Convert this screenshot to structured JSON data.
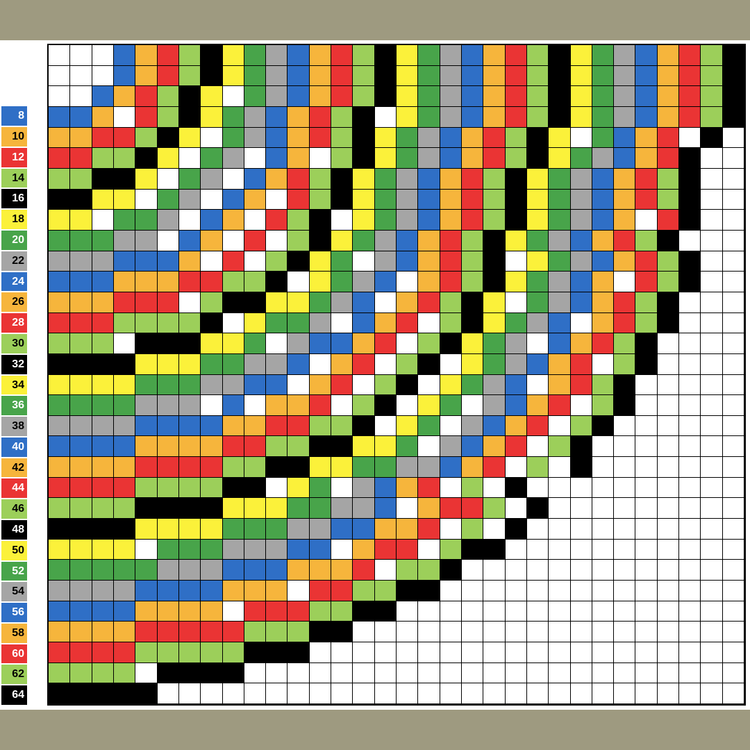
{
  "row_labels": [
    {
      "text": "8",
      "color": "#2f6fc6",
      "text_color": "#ffffff"
    },
    {
      "text": "10",
      "color": "#f6b53c",
      "text_color": "#000000"
    },
    {
      "text": "12",
      "color": "#ea3434",
      "text_color": "#ffffff"
    },
    {
      "text": "14",
      "color": "#9ccf5a",
      "text_color": "#000000"
    },
    {
      "text": "16",
      "color": "#000000",
      "text_color": "#ffffff"
    },
    {
      "text": "18",
      "color": "#fbf13a",
      "text_color": "#000000"
    },
    {
      "text": "20",
      "color": "#48a44a",
      "text_color": "#ffffff"
    },
    {
      "text": "22",
      "color": "#a5a5a5",
      "text_color": "#000000"
    },
    {
      "text": "24",
      "color": "#2f6fc6",
      "text_color": "#ffffff"
    },
    {
      "text": "26",
      "color": "#f6b53c",
      "text_color": "#000000"
    },
    {
      "text": "28",
      "color": "#ea3434",
      "text_color": "#ffffff"
    },
    {
      "text": "30",
      "color": "#9ccf5a",
      "text_color": "#000000"
    },
    {
      "text": "32",
      "color": "#000000",
      "text_color": "#ffffff"
    },
    {
      "text": "34",
      "color": "#fbf13a",
      "text_color": "#000000"
    },
    {
      "text": "36",
      "color": "#48a44a",
      "text_color": "#ffffff"
    },
    {
      "text": "38",
      "color": "#a5a5a5",
      "text_color": "#000000"
    },
    {
      "text": "40",
      "color": "#2f6fc6",
      "text_color": "#ffffff"
    },
    {
      "text": "42",
      "color": "#f6b53c",
      "text_color": "#000000"
    },
    {
      "text": "44",
      "color": "#ea3434",
      "text_color": "#ffffff"
    },
    {
      "text": "46",
      "color": "#9ccf5a",
      "text_color": "#000000"
    },
    {
      "text": "48",
      "color": "#000000",
      "text_color": "#ffffff"
    },
    {
      "text": "50",
      "color": "#fbf13a",
      "text_color": "#000000"
    },
    {
      "text": "52",
      "color": "#48a44a",
      "text_color": "#ffffff"
    },
    {
      "text": "54",
      "color": "#a5a5a5",
      "text_color": "#000000"
    },
    {
      "text": "56",
      "color": "#2f6fc6",
      "text_color": "#ffffff"
    },
    {
      "text": "58",
      "color": "#f6b53c",
      "text_color": "#000000"
    },
    {
      "text": "60",
      "color": "#ea3434",
      "text_color": "#ffffff"
    },
    {
      "text": "62",
      "color": "#9ccf5a",
      "text_color": "#000000"
    },
    {
      "text": "64",
      "color": "#000000",
      "text_color": "#ffffff"
    }
  ],
  "palette": {
    "W": "#ffffff",
    "B": "#2f6fc6",
    "O": "#f6b53c",
    "R": "#ea3434",
    "L": "#9ccf5a",
    "K": "#000000",
    "Y": "#fbf13a",
    "G": "#48a44a",
    "S": "#a5a5a5"
  },
  "grid_rows": [
    "WWWBORLKYGSBORLKYGSBORLKYGSBORLK",
    "WWWBORLKYGSBORLKYGSBORLKYGSBORLK",
    "WWBORLKYWGSBORLKYGSBORLKYGSBORLK",
    "BBOWRLKYGSBORLKWYGSBORLKYGSBORLK",
    "OORRLKYWGSBORLKYGSBORLKYWGBORWK",
    "RRLLKYWGSWBOWLKYGSBORLKYGSBORKW",
    "LLKKYWGSWBORLKYGSBORLKYGSBORLKW",
    "KKYYWGSWBOWRLKYGSBORLKYGSBORLKW",
    "YYWGGSWBOWRLKWYGSBORLKYGSBOWRKW",
    "GGGSSWBOWRWLKYGSBORLKYGSBORLKWW",
    "SSSBBBOWRWLKYGWSBORLKWYGSBORLKW",
    "BBBOOORRLLKWYGSBWORLKYGSBOWRLKW",
    "OOORRRWLKKYYGSBWORLKYWGSBORLKWW",
    "RRRLLLLKWYGGSWBORWLKYGSBWORLKWW",
    "LLLWKKKYYGWSBBORWLKYGSWBORLKWWW",
    "KKKKYYYGGSSBWORWLKWYGSBORWLKWWW",
    "YYYYGGGSSBBWORWLKWYGSBWORLKWWWW",
    "GGGGSSSWBWOORWLKWYGWSBORWLKWWWW",
    "SSSSBBBBOORRLLKWYGWSBORWLKWWWWW",
    "BBBBOOOORRLLKKYYGWSBORWLKWWWWWW",
    "OOOORRRRLLKKYYGGSSBORWLWKWWWWWW",
    "RRRRLLLLKKWYGWSBORWLWKWWWWWWWWW",
    "LLLLKKKKYYYGGSSBWORRLWKWWWWWWWW",
    "KKKKYYYYGGGSSBBOORWLWKWWWWWWWWW",
    "YYYYWGGGSSSBBWORRWLKKWWWWWWWWWW",
    "GGGGGSSSBBBOOORWLLKWWWWWWWWWWWW",
    "SSSSBBBBOOOWRRLLKKWWWWWWWWWWWWW",
    "BBBBOOOOWRRRLLKKWWWWWWWWWWWWWWW",
    "OOOORRRRRLLLKKWWWWWWWWWWWWWWWWW",
    "RRRRLLLLLKKKWWWWWWWWWWWWWWWWWWW",
    "LLLLWKKKKWWWWWWWWWWWWWWWWWWWWWW",
    "KKKKKWWWWWWWWWWWWWWWWWWWWWWWWWW"
  ]
}
